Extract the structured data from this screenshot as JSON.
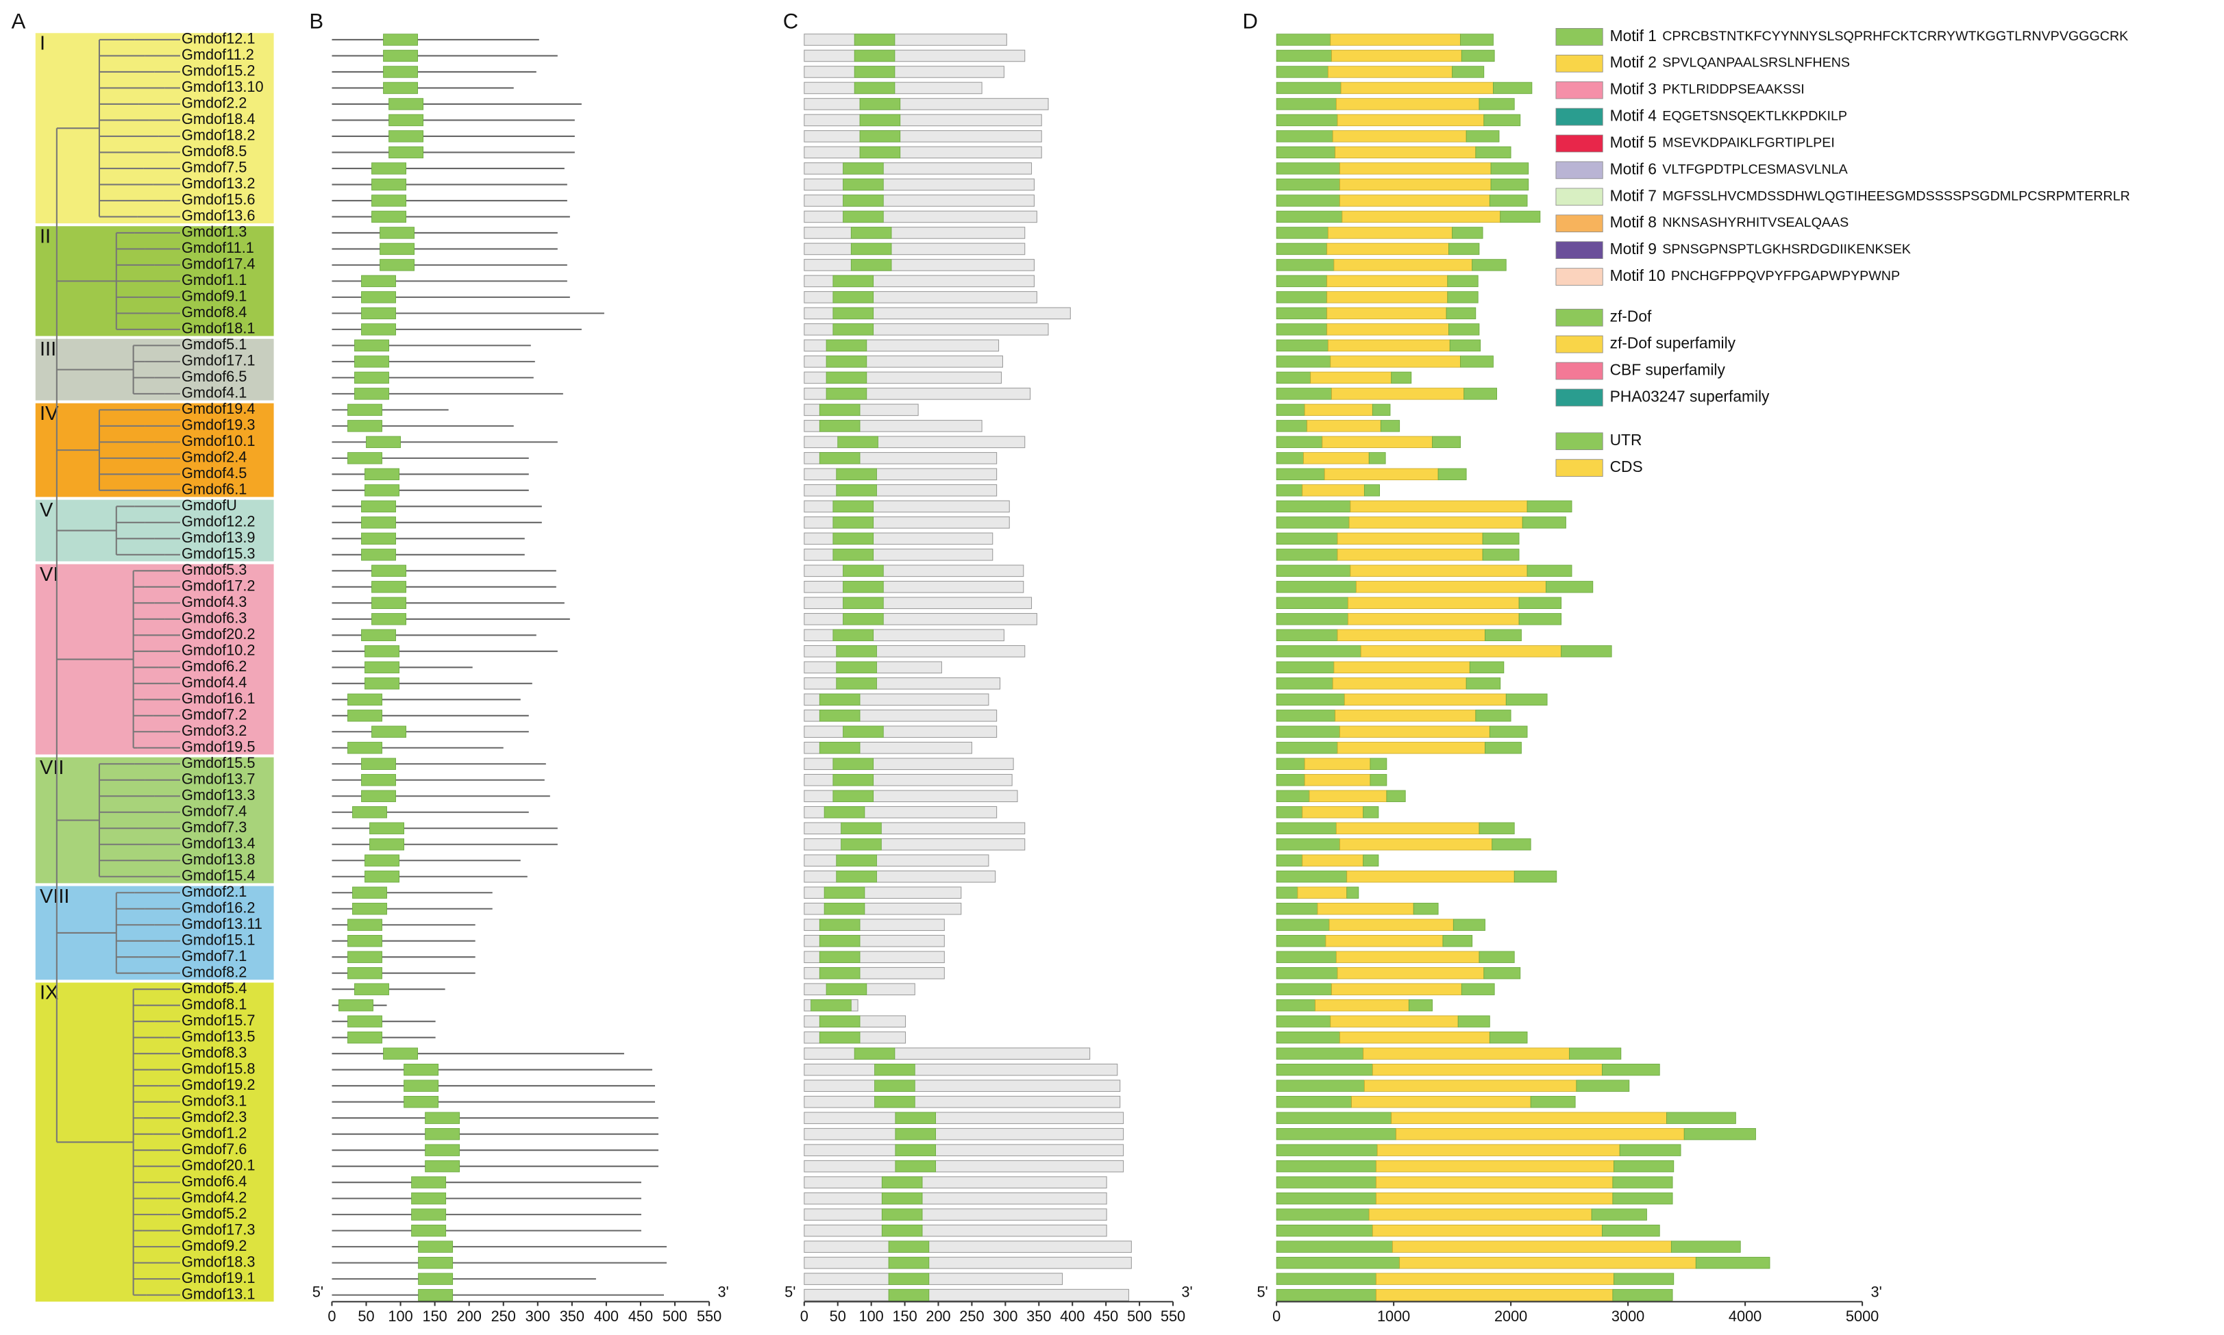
{
  "panels": {
    "a": "A",
    "b": "B",
    "c": "C",
    "d": "D"
  },
  "end5": "5'",
  "end3": "3'",
  "axis_b": {
    "xlim": [
      0,
      550
    ],
    "xticks": [
      0,
      50,
      100,
      150,
      200,
      250,
      300,
      350,
      400,
      450,
      500,
      550
    ]
  },
  "axis_c": {
    "xlim": [
      0,
      550
    ],
    "xticks": [
      0,
      50,
      100,
      150,
      200,
      250,
      300,
      350,
      400,
      450,
      500,
      550
    ]
  },
  "axis_d": {
    "xlim": [
      0,
      5000
    ],
    "xticks": [
      0,
      1000,
      2000,
      3000,
      4000,
      5000
    ]
  },
  "motifs": [
    {
      "name": "Motif 1",
      "seq": "CPRCBSTNTKFCYYNNYSLSQPRHFCKTCRRYWTKGGTLRNVPVGGGCRK",
      "color": "#8dc85a"
    },
    {
      "name": "Motif 2",
      "seq": "SPVLQANPAALSRSLNFHENS",
      "color": "#f9d548"
    },
    {
      "name": "Motif 3",
      "seq": "PKTLRIDDPSEAAKSSI",
      "color": "#f58fa8"
    },
    {
      "name": "Motif 4",
      "seq": "EQGETSNSQEKTLKKPDKILP",
      "color": "#2a9d8f"
    },
    {
      "name": "Motif 5",
      "seq": "MSEVKDPAIKLFGRTIPLPEI",
      "color": "#e8264a"
    },
    {
      "name": "Motif 6",
      "seq": "VLTFGPDTPLCESMASVLNLA",
      "color": "#b9b4d4"
    },
    {
      "name": "Motif 7",
      "seq": "MGFSSLHVCMDSSDHWLQGTIHEESGMDSSSSPSGDMLPCSRPMTERRLR",
      "color": "#d8efc2"
    },
    {
      "name": "Motif 8",
      "seq": "NKNSASHYRHITVSEALQAAS",
      "color": "#f7b35c"
    },
    {
      "name": "Motif 9",
      "seq": "SPNSGPNSPTLGKHSRDGDIIKENKSEK",
      "color": "#6a4f9a"
    },
    {
      "name": "Motif 10",
      "seq": "PNCHGFPPQVPYFPGAPWPYPWNP",
      "color": "#fbd3bd"
    }
  ],
  "domains": [
    {
      "name": "zf-Dof",
      "color": "#8dc85a"
    },
    {
      "name": "zf-Dof superfamily",
      "color": "#f9d548"
    },
    {
      "name": "CBF superfamily",
      "color": "#f37996"
    },
    {
      "name": "PHA03247 superfamily",
      "color": "#2a9d8f"
    }
  ],
  "structure": [
    {
      "name": "UTR",
      "color": "#8dc85a"
    },
    {
      "name": "CDS",
      "color": "#f9d548"
    }
  ],
  "groups": [
    {
      "label": "I",
      "color": "#f3ee7b",
      "genes": [
        {
          "name": "Gmdof12.1",
          "length": 302,
          "dof": 75,
          "gene": 1850,
          "cds": [
            460,
            1570
          ]
        },
        {
          "name": "Gmdof11.2",
          "length": 329,
          "dof": 75,
          "gene": 1860,
          "cds": [
            470,
            1580
          ]
        },
        {
          "name": "Gmdof15.2",
          "length": 298,
          "dof": 75,
          "gene": 1770,
          "cds": [
            440,
            1500
          ]
        },
        {
          "name": "Gmdof13.10",
          "length": 265,
          "dof": 75,
          "gene": 2180,
          "cds": [
            550,
            1850
          ]
        },
        {
          "name": "Gmdof2.2",
          "length": 364,
          "dof": 83,
          "gene": 2030,
          "cds": [
            510,
            1730
          ]
        },
        {
          "name": "Gmdof18.4",
          "length": 354,
          "dof": 83,
          "gene": 2080,
          "cds": [
            520,
            1770
          ]
        },
        {
          "name": "Gmdof18.2",
          "length": 354,
          "dof": 83,
          "gene": 1900,
          "cds": [
            480,
            1620
          ]
        },
        {
          "name": "Gmdof8.5",
          "length": 354,
          "dof": 83,
          "gene": 2000,
          "cds": [
            500,
            1700
          ]
        },
        {
          "name": "Gmdof7.5",
          "length": 339,
          "dof": 58,
          "gene": 2150,
          "cds": [
            540,
            1830
          ]
        },
        {
          "name": "Gmdof13.2",
          "length": 343,
          "dof": 58,
          "gene": 2150,
          "cds": [
            540,
            1830
          ]
        },
        {
          "name": "Gmdof15.6",
          "length": 343,
          "dof": 58,
          "gene": 2140,
          "cds": [
            540,
            1820
          ]
        },
        {
          "name": "Gmdof13.6",
          "length": 347,
          "dof": 58,
          "gene": 2250,
          "cds": [
            560,
            1910
          ]
        }
      ]
    },
    {
      "label": "II",
      "color": "#9fc84a",
      "genes": [
        {
          "name": "Gmdof1.3",
          "length": 329,
          "dof": 70,
          "gene": 1760,
          "cds": [
            440,
            1500
          ]
        },
        {
          "name": "Gmdof11.1",
          "length": 329,
          "dof": 70,
          "gene": 1730,
          "cds": [
            430,
            1470
          ]
        },
        {
          "name": "Gmdof17.4",
          "length": 343,
          "dof": 70,
          "gene": 1960,
          "cds": [
            490,
            1670
          ]
        },
        {
          "name": "Gmdof1.1",
          "length": 343,
          "dof": 43,
          "gene": 1720,
          "cds": [
            430,
            1460
          ]
        },
        {
          "name": "Gmdof9.1",
          "length": 347,
          "dof": 43,
          "gene": 1720,
          "cds": [
            430,
            1460
          ]
        },
        {
          "name": "Gmdof8.4",
          "length": 397,
          "dof": 43,
          "gene": 1700,
          "cds": [
            430,
            1450
          ]
        },
        {
          "name": "Gmdof18.1",
          "length": 364,
          "dof": 43,
          "gene": 1730,
          "cds": [
            430,
            1470
          ]
        }
      ]
    },
    {
      "label": "III",
      "color": "#c8cebf",
      "genes": [
        {
          "name": "Gmdof5.1",
          "length": 290,
          "dof": 33,
          "gene": 1740,
          "cds": [
            440,
            1480
          ]
        },
        {
          "name": "Gmdof17.1",
          "length": 296,
          "dof": 33,
          "gene": 1850,
          "cds": [
            460,
            1570
          ]
        },
        {
          "name": "Gmdof6.5",
          "length": 294,
          "dof": 33,
          "gene": 1150,
          "cds": [
            290,
            980
          ]
        },
        {
          "name": "Gmdof4.1",
          "length": 337,
          "dof": 33,
          "gene": 1880,
          "cds": [
            470,
            1600
          ]
        }
      ]
    },
    {
      "label": "IV",
      "color": "#f5a623",
      "genes": [
        {
          "name": "Gmdof19.4",
          "length": 170,
          "dof": 23,
          "gene": 970,
          "cds": [
            240,
            820
          ]
        },
        {
          "name": "Gmdof19.3",
          "length": 265,
          "dof": 23,
          "gene": 1050,
          "cds": [
            260,
            890
          ]
        },
        {
          "name": "Gmdof10.1",
          "length": 329,
          "dof": 50,
          "gene": 1570,
          "cds": [
            390,
            1330
          ]
        },
        {
          "name": "Gmdof2.4",
          "length": 287,
          "dof": 23,
          "gene": 930,
          "cds": [
            230,
            790
          ]
        },
        {
          "name": "Gmdof4.5",
          "length": 287,
          "dof": 48,
          "gene": 1620,
          "cds": [
            410,
            1380
          ]
        },
        {
          "name": "Gmdof6.1",
          "length": 287,
          "dof": 48,
          "gene": 880,
          "cds": [
            220,
            750
          ]
        }
      ]
    },
    {
      "label": "V",
      "color": "#b8ddd0",
      "genes": [
        {
          "name": "GmdofU",
          "length": 306,
          "dof": 43,
          "gene": 2520,
          "cds": [
            630,
            2140
          ]
        },
        {
          "name": "Gmdof12.2",
          "length": 306,
          "dof": 43,
          "gene": 2470,
          "cds": [
            620,
            2100
          ]
        },
        {
          "name": "Gmdof13.9",
          "length": 281,
          "dof": 43,
          "gene": 2070,
          "cds": [
            520,
            1760
          ]
        },
        {
          "name": "Gmdof15.3",
          "length": 281,
          "dof": 43,
          "gene": 2070,
          "cds": [
            520,
            1760
          ]
        }
      ]
    },
    {
      "label": "VI",
      "color": "#f2a7b8",
      "genes": [
        {
          "name": "Gmdof5.3",
          "length": 327,
          "dof": 58,
          "gene": 2520,
          "cds": [
            630,
            2140
          ]
        },
        {
          "name": "Gmdof17.2",
          "length": 327,
          "dof": 58,
          "gene": 2700,
          "cds": [
            680,
            2300
          ]
        },
        {
          "name": "Gmdof4.3",
          "length": 339,
          "dof": 58,
          "gene": 2430,
          "cds": [
            610,
            2070
          ]
        },
        {
          "name": "Gmdof6.3",
          "length": 347,
          "dof": 58,
          "gene": 2430,
          "cds": [
            610,
            2070
          ]
        },
        {
          "name": "Gmdof20.2",
          "length": 298,
          "dof": 43,
          "gene": 2090,
          "cds": [
            520,
            1780
          ]
        },
        {
          "name": "Gmdof10.2",
          "length": 329,
          "dof": 48,
          "gene": 2860,
          "cds": [
            720,
            2430
          ]
        },
        {
          "name": "Gmdof6.2",
          "length": 205,
          "dof": 48,
          "gene": 1940,
          "cds": [
            490,
            1650
          ]
        },
        {
          "name": "Gmdof4.4",
          "length": 292,
          "dof": 48,
          "gene": 1910,
          "cds": [
            480,
            1620
          ]
        },
        {
          "name": "Gmdof16.1",
          "length": 275,
          "dof": 23,
          "gene": 2310,
          "cds": [
            580,
            1960
          ]
        },
        {
          "name": "Gmdof7.2",
          "length": 287,
          "dof": 23,
          "gene": 2000,
          "cds": [
            500,
            1700
          ]
        },
        {
          "name": "Gmdof3.2",
          "length": 287,
          "dof": 58,
          "gene": 2140,
          "cds": [
            540,
            1820
          ]
        },
        {
          "name": "Gmdof19.5",
          "length": 250,
          "dof": 23,
          "gene": 2090,
          "cds": [
            520,
            1780
          ]
        }
      ]
    },
    {
      "label": "VII",
      "color": "#a8d37a",
      "genes": [
        {
          "name": "Gmdof15.5",
          "length": 312,
          "dof": 43,
          "gene": 940,
          "cds": [
            240,
            800
          ]
        },
        {
          "name": "Gmdof13.7",
          "length": 310,
          "dof": 43,
          "gene": 940,
          "cds": [
            240,
            800
          ]
        },
        {
          "name": "Gmdof13.3",
          "length": 318,
          "dof": 43,
          "gene": 1100,
          "cds": [
            280,
            940
          ]
        },
        {
          "name": "Gmdof7.4",
          "length": 287,
          "dof": 30,
          "gene": 870,
          "cds": [
            220,
            740
          ]
        },
        {
          "name": "Gmdof7.3",
          "length": 329,
          "dof": 55,
          "gene": 2030,
          "cds": [
            510,
            1730
          ]
        },
        {
          "name": "Gmdof13.4",
          "length": 329,
          "dof": 55,
          "gene": 2170,
          "cds": [
            540,
            1840
          ]
        },
        {
          "name": "Gmdof13.8",
          "length": 275,
          "dof": 48,
          "gene": 870,
          "cds": [
            220,
            740
          ]
        },
        {
          "name": "Gmdof15.4",
          "length": 285,
          "dof": 48,
          "gene": 2390,
          "cds": [
            600,
            2030
          ]
        }
      ]
    },
    {
      "label": "VIII",
      "color": "#8fcbe8",
      "genes": [
        {
          "name": "Gmdof2.1",
          "length": 234,
          "dof": 30,
          "gene": 700,
          "cds": [
            180,
            600
          ]
        },
        {
          "name": "Gmdof16.2",
          "length": 234,
          "dof": 30,
          "gene": 1380,
          "cds": [
            350,
            1170
          ]
        },
        {
          "name": "Gmdof13.11",
          "length": 209,
          "dof": 23,
          "gene": 1780,
          "cds": [
            450,
            1510
          ]
        },
        {
          "name": "Gmdof15.1",
          "length": 209,
          "dof": 23,
          "gene": 1670,
          "cds": [
            420,
            1420
          ]
        },
        {
          "name": "Gmdof7.1",
          "length": 209,
          "dof": 23,
          "gene": 2030,
          "cds": [
            510,
            1730
          ]
        },
        {
          "name": "Gmdof8.2",
          "length": 209,
          "dof": 23,
          "gene": 2080,
          "cds": [
            520,
            1770
          ]
        }
      ]
    },
    {
      "label": "IX",
      "color": "#dde33f",
      "genes": [
        {
          "name": "Gmdof5.4",
          "length": 165,
          "dof": 33,
          "gene": 1860,
          "cds": [
            470,
            1580
          ]
        },
        {
          "name": "Gmdof8.1",
          "length": 80,
          "dof": 10,
          "gene": 1330,
          "cds": [
            330,
            1130
          ]
        },
        {
          "name": "Gmdof15.7",
          "length": 151,
          "dof": 23,
          "gene": 1820,
          "cds": [
            460,
            1550
          ]
        },
        {
          "name": "Gmdof13.5",
          "length": 151,
          "dof": 23,
          "gene": 2140,
          "cds": [
            540,
            1820
          ]
        },
        {
          "name": "Gmdof8.3",
          "length": 426,
          "dof": 75,
          "gene": 2940,
          "cds": [
            740,
            2500
          ]
        },
        {
          "name": "Gmdof15.8",
          "length": 467,
          "dof": 105,
          "gene": 3270,
          "cds": [
            820,
            2780
          ]
        },
        {
          "name": "Gmdof19.2",
          "length": 471,
          "dof": 105,
          "gene": 3010,
          "cds": [
            750,
            2560
          ]
        },
        {
          "name": "Gmdof3.1",
          "length": 471,
          "dof": 105,
          "gene": 2550,
          "cds": [
            640,
            2170
          ]
        },
        {
          "name": "Gmdof2.3",
          "length": 476,
          "dof": 136,
          "gene": 3920,
          "cds": [
            980,
            3330
          ]
        },
        {
          "name": "Gmdof1.2",
          "length": 476,
          "dof": 136,
          "gene": 4090,
          "cds": [
            1020,
            3480
          ]
        },
        {
          "name": "Gmdof7.6",
          "length": 476,
          "dof": 136,
          "gene": 3450,
          "cds": [
            860,
            2930
          ]
        },
        {
          "name": "Gmdof20.1",
          "length": 476,
          "dof": 136,
          "gene": 3390,
          "cds": [
            850,
            2880
          ]
        },
        {
          "name": "Gmdof6.4",
          "length": 451,
          "dof": 116,
          "gene": 3380,
          "cds": [
            850,
            2870
          ]
        },
        {
          "name": "Gmdof4.2",
          "length": 451,
          "dof": 116,
          "gene": 3380,
          "cds": [
            850,
            2870
          ]
        },
        {
          "name": "Gmdof5.2",
          "length": 451,
          "dof": 116,
          "gene": 3160,
          "cds": [
            790,
            2690
          ]
        },
        {
          "name": "Gmdof17.3",
          "length": 451,
          "dof": 116,
          "gene": 3270,
          "cds": [
            820,
            2780
          ]
        },
        {
          "name": "Gmdof9.2",
          "length": 488,
          "dof": 126,
          "gene": 3960,
          "cds": [
            990,
            3370
          ]
        },
        {
          "name": "Gmdof18.3",
          "length": 488,
          "dof": 126,
          "gene": 4210,
          "cds": [
            1050,
            3580
          ]
        },
        {
          "name": "Gmdof19.1",
          "length": 385,
          "dof": 126,
          "gene": 3390,
          "cds": [
            850,
            2880
          ]
        },
        {
          "name": "Gmdof13.1",
          "length": 484,
          "dof": 126,
          "gene": 3380,
          "cds": [
            850,
            2870
          ]
        }
      ]
    }
  ]
}
